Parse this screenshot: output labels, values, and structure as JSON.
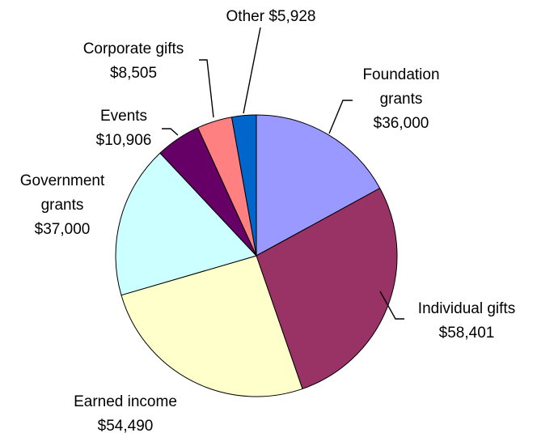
{
  "chart_data": {
    "type": "pie",
    "title": "",
    "start_angle_deg": 90,
    "direction": "clockwise",
    "legend": "none",
    "slices": [
      {
        "key": "foundation",
        "label_lines": [
          "Foundation",
          "grants"
        ],
        "value_text": "$36,000",
        "value": 36000,
        "color": "#9999ff"
      },
      {
        "key": "individual",
        "label_lines": [
          "Individual gifts"
        ],
        "value_text": "$58,401",
        "value": 58401,
        "color": "#993366"
      },
      {
        "key": "earned",
        "label_lines": [
          "Earned income"
        ],
        "value_text": "$54,490",
        "value": 54490,
        "color": "#ffffcc"
      },
      {
        "key": "government",
        "label_lines": [
          "Government",
          "grants"
        ],
        "value_text": "$37,000",
        "value": 37000,
        "color": "#ccffff"
      },
      {
        "key": "events",
        "label_lines": [
          "Events"
        ],
        "value_text": "$10,906",
        "value": 10906,
        "color": "#660066"
      },
      {
        "key": "corporate",
        "label_lines": [
          "Corporate gifts"
        ],
        "value_text": "$8,505",
        "value": 8505,
        "color": "#ff8080"
      },
      {
        "key": "other",
        "label_lines": [
          "Other"
        ],
        "value_text": "$5,928",
        "value": 5928,
        "color": "#0066cc"
      }
    ]
  }
}
